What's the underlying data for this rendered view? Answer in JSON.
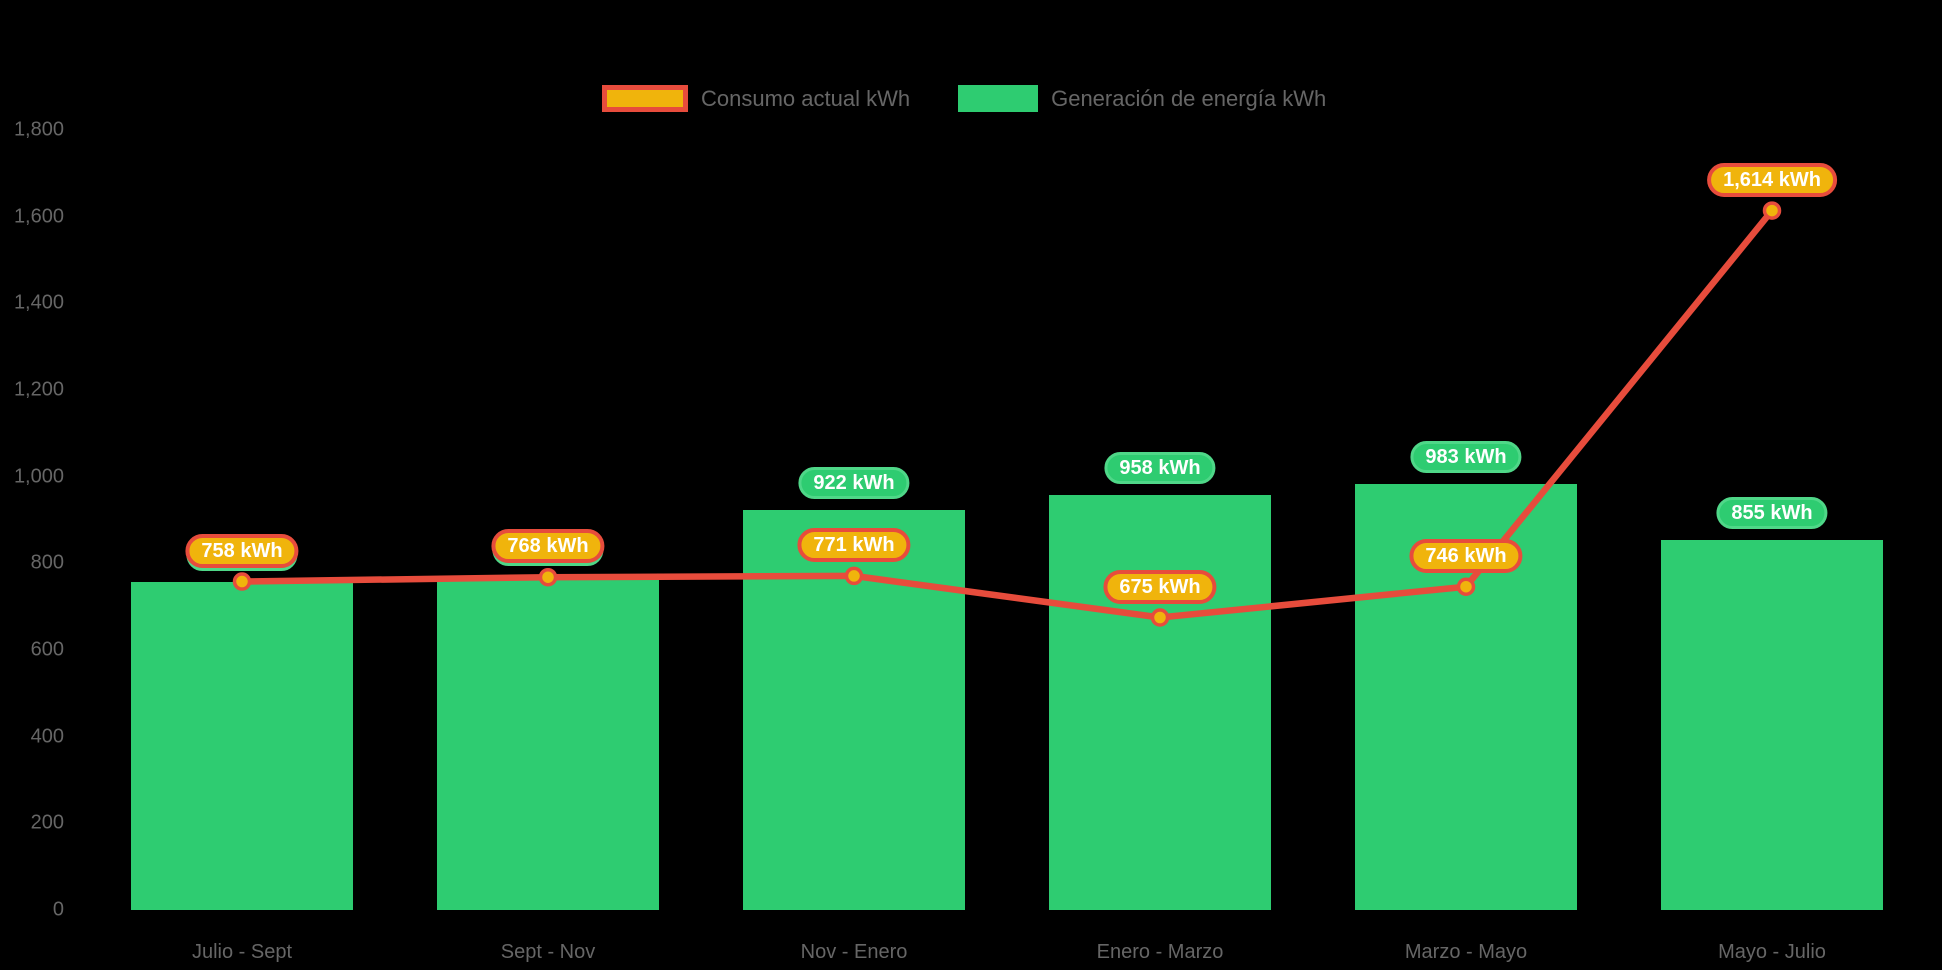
{
  "chart_data": {
    "type": "bar+line",
    "title": "",
    "categories": [
      "Julio - Sept",
      "Sept - Nov",
      "Nov - Enero",
      "Enero - Marzo",
      "Marzo - Mayo",
      "Mayo - Julio"
    ],
    "series": [
      {
        "name": "Consumo actual kWh",
        "type": "line",
        "color": "#e74c3c",
        "marker_fill": "#f0b40c",
        "values": [
          758,
          768,
          771,
          675,
          746,
          1614
        ],
        "labels": [
          "758 kWh",
          "768 kWh",
          "771 kWh",
          "675 kWh",
          "746 kWh",
          "1,614 kWh"
        ]
      },
      {
        "name": "Generación de energía kWh",
        "type": "bar",
        "color": "#2ecc71",
        "values": [
          758,
          768,
          922,
          958,
          983,
          855
        ],
        "labels": [
          "758 kWh",
          "768 kWh",
          "922 kWh",
          "958 kWh",
          "983 kWh",
          "855 kWh"
        ]
      }
    ],
    "y_axis": {
      "ticks": [
        {
          "label": "0",
          "value": 0
        },
        {
          "label": "200",
          "value": 200
        },
        {
          "label": "400",
          "value": 400
        },
        {
          "label": "600",
          "value": 600
        },
        {
          "label": "800",
          "value": 800
        },
        {
          "label": "1,000",
          "value": 1000
        },
        {
          "label": "1,200",
          "value": 1200
        },
        {
          "label": "1,400",
          "value": 1400
        },
        {
          "label": "1,600",
          "value": 1600
        },
        {
          "label": "1,800",
          "value": 1800
        }
      ],
      "ylim": [
        0,
        1800
      ]
    },
    "grid": false,
    "legend_position": "top-center",
    "background": "#000000"
  },
  "colors": {
    "bar_green": "#2ecc71",
    "badge_green_border": "#4fd788",
    "line_red": "#e74c3c",
    "marker_yellow": "#f0b40c",
    "axis_text_gray": "#666666",
    "badge_text": "#ffffff",
    "background": "#000000"
  }
}
